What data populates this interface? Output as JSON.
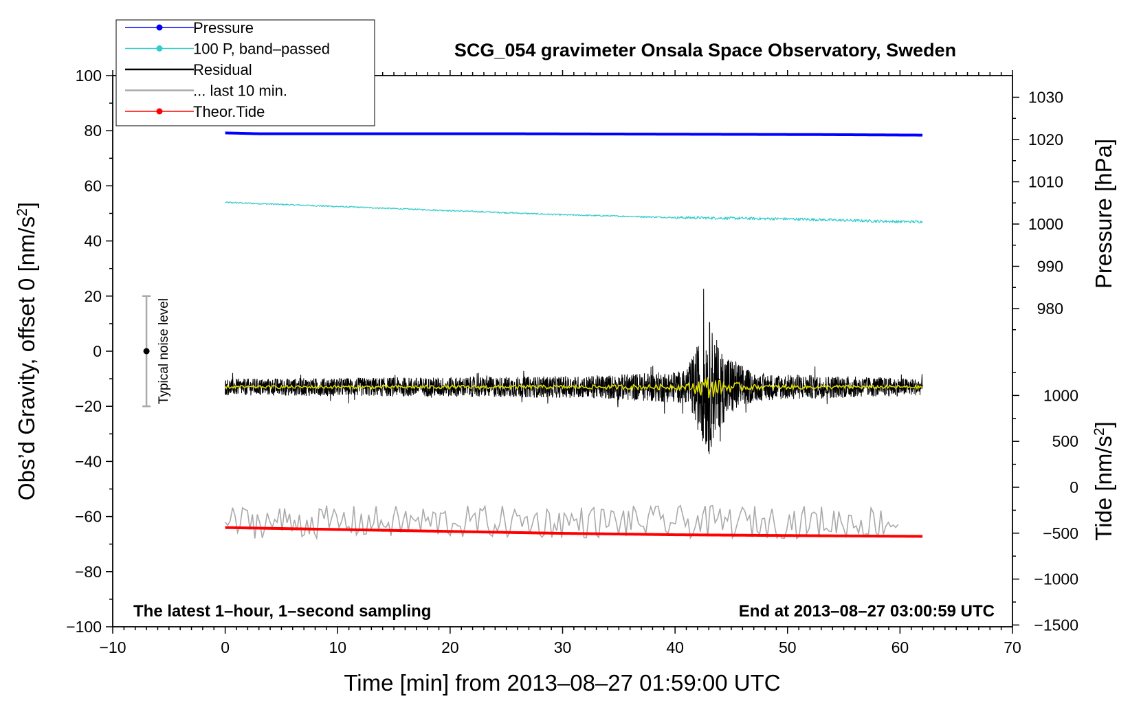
{
  "chart_data": {
    "type": "line",
    "title": "SCG_054 gravimeter Onsala Space Observatory, Sweden",
    "xlabel": "Time [min] from 2013–08–27 01:59:00 UTC",
    "ylabel_left": "Obs’d Gravity, offset 0 [nm/s",
    "ylabel_left_sup": "2",
    "ylabel_left_end": "]",
    "ylabel_right_top": "Pressure [hPa]",
    "ylabel_right_bottom": "Tide [nm/s",
    "ylabel_right_bottom_sup": "2",
    "ylabel_right_bottom_end": "]",
    "xlim": [
      -10,
      70
    ],
    "ylim": [
      -100,
      100
    ],
    "x_ticks": [
      -10,
      0,
      10,
      20,
      30,
      40,
      50,
      60,
      70
    ],
    "x_tick_labels": [
      "−10",
      "0",
      "10",
      "20",
      "30",
      "40",
      "50",
      "60",
      "70"
    ],
    "y_ticks": [
      -100,
      -80,
      -60,
      -40,
      -20,
      0,
      20,
      40,
      60,
      80,
      100
    ],
    "y_tick_labels": [
      "−100",
      "−80",
      "−60",
      "−40",
      "−20",
      "0",
      "20",
      "40",
      "60",
      "80",
      "100"
    ],
    "pressure_ticks": [
      980,
      990,
      1000,
      1010,
      1020,
      1030
    ],
    "pressure_tick_labels": [
      "980",
      "990",
      "1000",
      "1010",
      "1020",
      "1030"
    ],
    "tide_ticks": [
      -1500,
      -1000,
      -500,
      0,
      500,
      1000
    ],
    "tide_tick_labels": [
      "−1500",
      "−1000",
      "−500",
      "0",
      "500",
      "1000"
    ],
    "note_left": "The latest 1–hour, 1–second sampling",
    "note_right": "End at 2013–08–27 03:00:59 UTC",
    "noise_bar": {
      "label": "Typical noise level",
      "x": -7,
      "center": 0,
      "low": -20,
      "high": 20
    },
    "legend": [
      {
        "label": "Pressure",
        "color": "#0000ff",
        "marker": true,
        "width": 1.5
      },
      {
        "label": "100 P, band–passed",
        "color": "#33cccc",
        "marker": true,
        "width": 1.5
      },
      {
        "label": "Residual",
        "color": "#000000",
        "marker": false,
        "width": 2.5
      },
      {
        "label": "... last 10 min.",
        "color": "#aaaaaa",
        "marker": false,
        "width": 2.5
      },
      {
        "label": "Theor.Tide",
        "color": "#ff0000",
        "marker": true,
        "width": 1.5
      }
    ],
    "series": [
      {
        "name": "Pressure",
        "color": "#0000ff",
        "x": [
          0,
          3,
          25,
          53,
          62
        ],
        "y": [
          79.2,
          78.9,
          78.9,
          78.6,
          78.4
        ]
      },
      {
        "name": "100 P, band–passed",
        "color": "#33cccc",
        "x": [
          0,
          10,
          20,
          30,
          40,
          50,
          60,
          62
        ],
        "y": [
          54,
          52.5,
          51,
          49.5,
          48.5,
          48,
          47,
          47
        ]
      },
      {
        "name": "Residual",
        "color": "#000000",
        "x": [
          0,
          32,
          41,
          43,
          44,
          47,
          62
        ],
        "y": [
          -13,
          -13,
          -13,
          -13,
          -13,
          -13,
          -13
        ],
        "noise_amplitude": [
          3,
          4,
          6,
          25,
          14,
          5,
          3
        ]
      },
      {
        "name": "... last 10 min.",
        "color": "#aaaaaa",
        "x": [
          0,
          60
        ],
        "y": [
          -62,
          -62
        ],
        "noise_amplitude": [
          6,
          6
        ]
      },
      {
        "name": "Theor.Tide",
        "color": "#ff0000",
        "x": [
          0,
          10,
          20,
          30,
          40,
          50,
          62
        ],
        "y": [
          -64,
          -64.7,
          -65.4,
          -66.1,
          -66.6,
          -66.9,
          -67.2
        ]
      }
    ],
    "smoothed_residual": {
      "color": "#dddd00",
      "y": -13
    }
  }
}
